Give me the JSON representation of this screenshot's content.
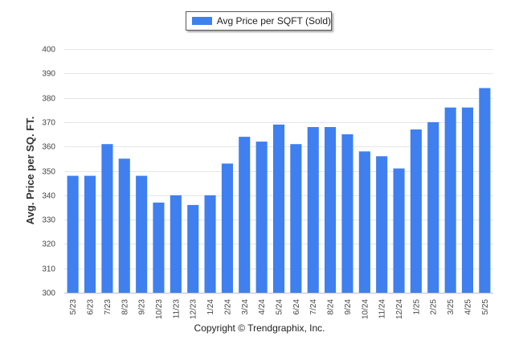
{
  "copyright": "Copyright © Trendgraphix, Inc.",
  "colors": {
    "bar": "#3f7ff0",
    "grid": "#e6e6e6",
    "axis": "#bfbfbf"
  },
  "chart_data": {
    "type": "bar",
    "title": "",
    "xlabel": "",
    "ylabel": "Avg. Price per SQ. FT.",
    "ylim": [
      300,
      400
    ],
    "yticks": [
      300,
      310,
      320,
      330,
      340,
      350,
      360,
      370,
      380,
      390,
      400
    ],
    "grid": true,
    "legend_position": "top-center",
    "categories": [
      "5/23",
      "6/23",
      "7/23",
      "8/23",
      "9/23",
      "10/23",
      "11/23",
      "12/23",
      "1/24",
      "2/24",
      "3/24",
      "4/24",
      "5/24",
      "6/24",
      "7/24",
      "8/24",
      "9/24",
      "10/24",
      "11/24",
      "12/24",
      "1/25",
      "2/25",
      "3/25",
      "4/25",
      "5/25"
    ],
    "series": [
      {
        "name": "Avg Price per SQFT (Sold)",
        "values": [
          348,
          348,
          361,
          355,
          348,
          337,
          340,
          336,
          340,
          353,
          364,
          362,
          369,
          361,
          368,
          368,
          365,
          358,
          356,
          351,
          367,
          370,
          376,
          376,
          384
        ]
      }
    ]
  }
}
